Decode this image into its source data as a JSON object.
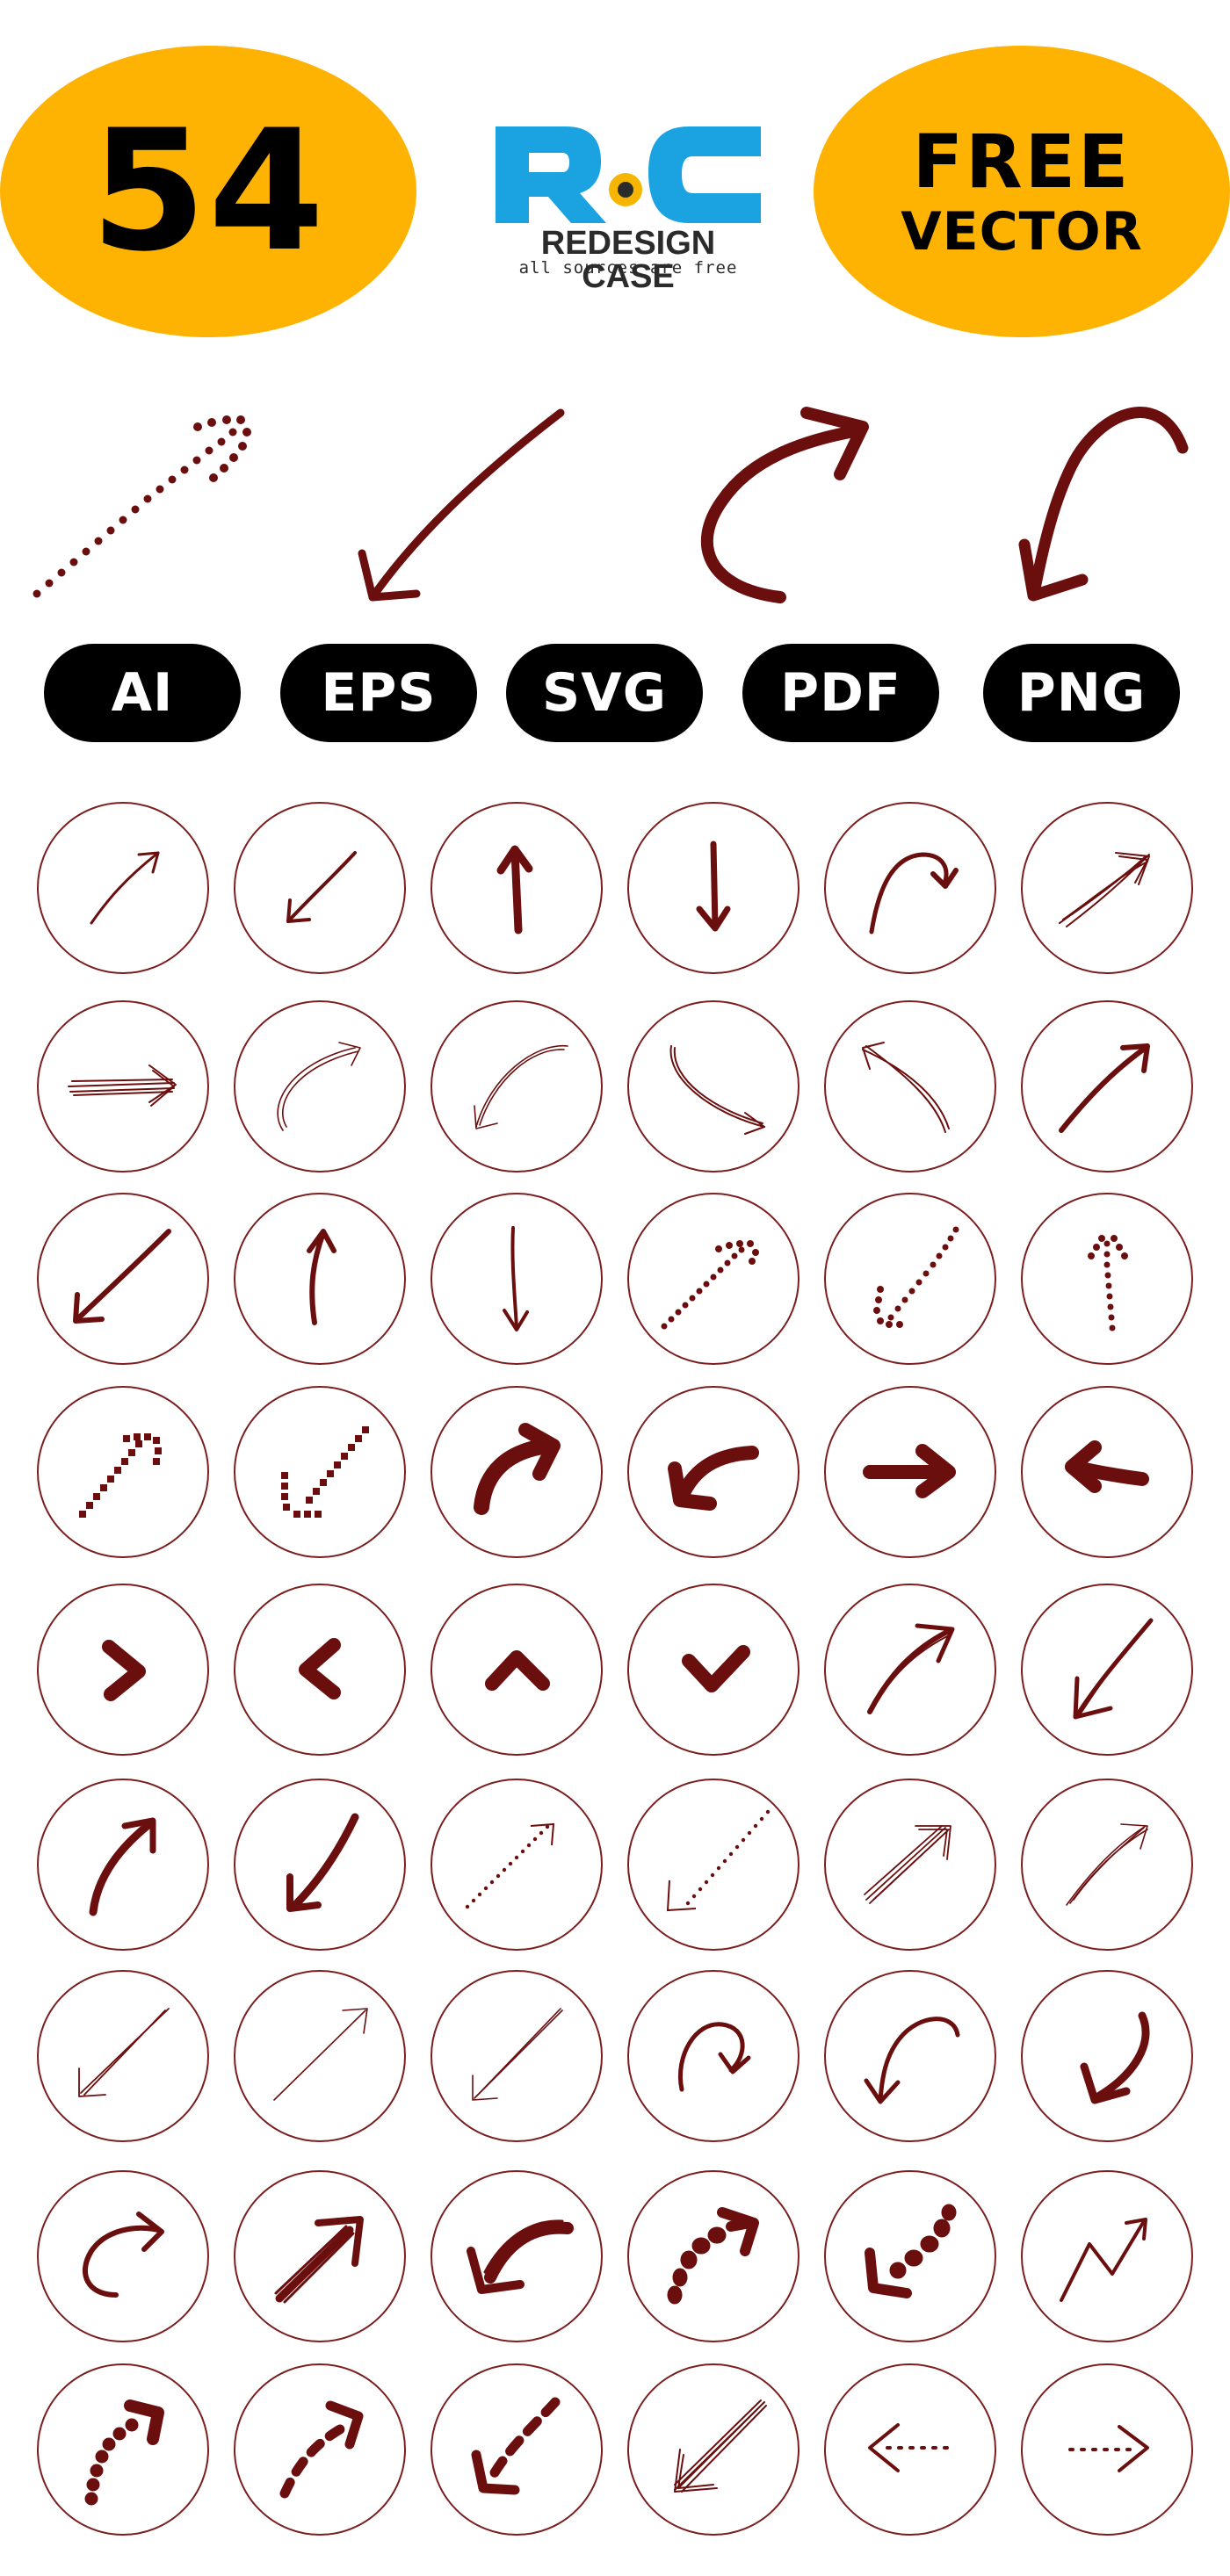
{
  "header": {
    "count": "54",
    "logo_mark": "RoC",
    "logo_brand": "REDESIGN CASE",
    "logo_tagline": "all sources are free",
    "badge_line1": "FREE",
    "badge_line2": "VECTOR"
  },
  "formats": [
    "AI",
    "EPS",
    "SVG",
    "PDF",
    "PNG"
  ],
  "colors": {
    "badge": "#FEB201",
    "arrow": "#6B0E0E",
    "circle_stroke": "#7A1E1E",
    "logo_blue": "#1AA3E0",
    "logo_yellow": "#F6B600",
    "pill": "#000000",
    "pill_text": "#FFFFFF"
  },
  "icon_grid": {
    "rows": 9,
    "columns": 6,
    "total": 54
  }
}
